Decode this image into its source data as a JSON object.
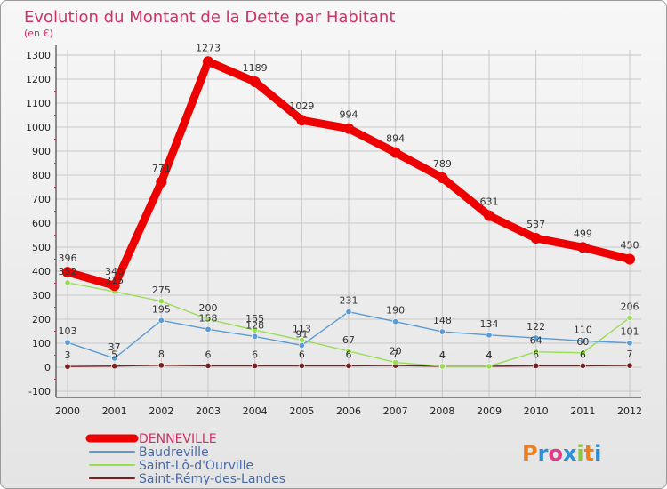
{
  "chart_data": {
    "type": "line",
    "title": "Evolution du Montant de la Dette par Habitant",
    "subtitle": "(en €)",
    "categories": [
      "2000",
      "2001",
      "2002",
      "2003",
      "2004",
      "2005",
      "2006",
      "2007",
      "2008",
      "2009",
      "2010",
      "2011",
      "2012"
    ],
    "ylim": [
      -100,
      1300
    ],
    "yticks": [
      -100,
      0,
      100,
      200,
      300,
      400,
      500,
      600,
      700,
      800,
      900,
      1000,
      1100,
      1200,
      1300
    ],
    "grid": true,
    "series": [
      {
        "name": "DENNEVILLE",
        "color": "#ee0000",
        "values": [
          396,
          340,
          771,
          1273,
          1189,
          1029,
          994,
          894,
          789,
          631,
          537,
          499,
          450
        ]
      },
      {
        "name": "Baudreville",
        "color": "#5b9bd5",
        "values": [
          103,
          37,
          195,
          158,
          128,
          91,
          231,
          190,
          148,
          134,
          122,
          110,
          101
        ]
      },
      {
        "name": "Saint-Lô-d'Ourville",
        "color": "#99dd55",
        "values": [
          352,
          315,
          275,
          200,
          155,
          113,
          67,
          20,
          4,
          4,
          64,
          60,
          206
        ]
      },
      {
        "name": "Saint-Rémy-des-Landes",
        "color": "#7a1f1f",
        "values": [
          3,
          5,
          8,
          6,
          6,
          6,
          6,
          7,
          4,
          4,
          6,
          6,
          7
        ]
      }
    ],
    "legend_position": "bottom-left"
  },
  "logo": {
    "text": "Proxiti"
  }
}
